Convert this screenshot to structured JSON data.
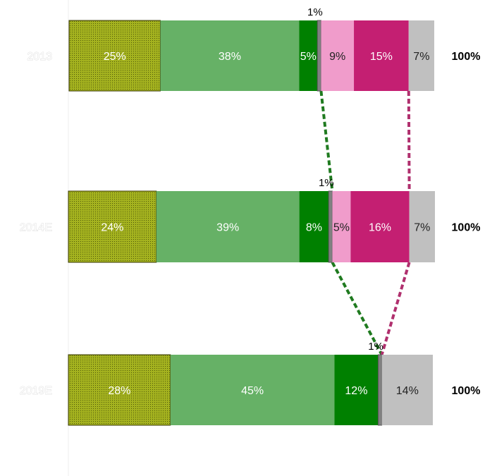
{
  "chart_data": {
    "type": "bar",
    "orientation": "horizontal",
    "stacked": true,
    "categories": [
      "2013",
      "2014E",
      "2019E"
    ],
    "series": [
      {
        "values": [
          25,
          24,
          28
        ],
        "color": "#9aaa1c",
        "pattern": "dotted"
      },
      {
        "values": [
          38,
          39,
          45
        ],
        "color": "#66b166"
      },
      {
        "values": [
          5,
          8,
          12
        ],
        "color": "#008000"
      },
      {
        "values": [
          1,
          1,
          1
        ],
        "color": "#808080"
      },
      {
        "values": [
          9,
          5,
          0
        ],
        "color": "#f09ccb"
      },
      {
        "values": [
          15,
          16,
          0
        ],
        "color": "#c41f72"
      },
      {
        "values": [
          7,
          7,
          14
        ],
        "color": "#c0c0c0"
      }
    ],
    "totals": [
      "100%",
      "100%",
      "100%"
    ],
    "connectors": [
      {
        "color": "#1f7a1f",
        "after_series": 3
      },
      {
        "color": "#b0306e",
        "after_series": 5
      }
    ],
    "grid": false,
    "legend": "none"
  }
}
